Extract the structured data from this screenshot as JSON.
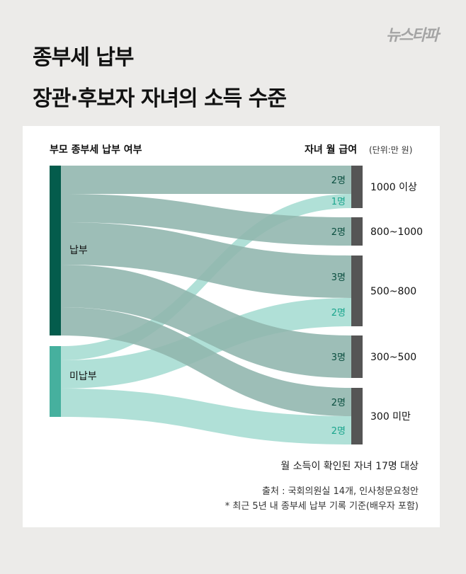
{
  "header": {
    "title_line1": "종부세 납부",
    "title_line2": "장관·후보자 자녀의 소득 수준",
    "logo_text": "뉴스타파"
  },
  "chart_data": {
    "type": "sankey",
    "left_header": "부모 종부세 납부 여부",
    "right_header": "자녀 월 급여",
    "unit_label": "(단위:만 원)",
    "sources": [
      "납부",
      "미납부"
    ],
    "targets": [
      "1000 이상",
      "800~1000",
      "500~800",
      "300~500",
      "300 미만"
    ],
    "flows": [
      {
        "from": "납부",
        "to": "1000 이상",
        "value": 2,
        "label": "2명"
      },
      {
        "from": "미납부",
        "to": "1000 이상",
        "value": 1,
        "label": "1명"
      },
      {
        "from": "납부",
        "to": "800~1000",
        "value": 2,
        "label": "2명"
      },
      {
        "from": "납부",
        "to": "500~800",
        "value": 3,
        "label": "3명"
      },
      {
        "from": "미납부",
        "to": "500~800",
        "value": 2,
        "label": "2명"
      },
      {
        "from": "납부",
        "to": "300~500",
        "value": 3,
        "label": "3명"
      },
      {
        "from": "납부",
        "to": "300 미만",
        "value": 2,
        "label": "2명"
      },
      {
        "from": "미납부",
        "to": "300 미만",
        "value": 2,
        "label": "2명"
      }
    ],
    "colors": {
      "paid_node": "#045c4c",
      "unpaid_node": "#46b09e",
      "paid_flow": "#8fb5ad",
      "unpaid_flow": "#a5dcd2",
      "target_node": "#555555",
      "paid_label": "#0b4f40",
      "unpaid_label": "#1aa58d"
    }
  },
  "notes": {
    "sample": "월 소득이 확인된 자녀 17명 대상",
    "source": "출처 : 국회의원실 14개, 인사청문요청안",
    "footnote": "* 최근 5년 내 종부세 납부 기록 기준(배우자 포함)"
  }
}
